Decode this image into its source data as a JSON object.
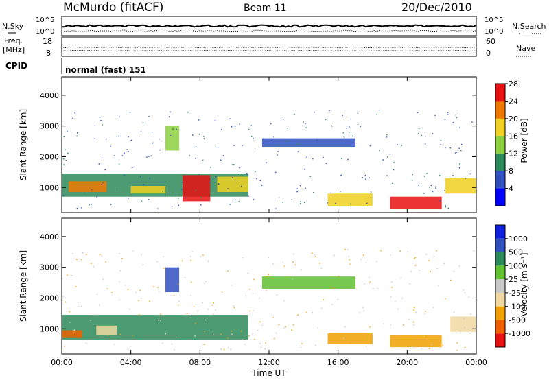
{
  "header": {
    "station": "McMurdo (fitACF)",
    "beam": "Beam 11",
    "date": "20/Dec/2010"
  },
  "noise_panel": {
    "left_label": "N.Sky",
    "right_label": "N.Search",
    "left_ticks": [
      "10^5",
      "10^0"
    ],
    "right_ticks": [
      "10^5",
      "10^0"
    ]
  },
  "freq_panel": {
    "left_label_top": "Freq.",
    "left_label_bottom": "[MHz]",
    "right_label": "Nave",
    "left_ticks": [
      "18",
      "8"
    ],
    "right_ticks": [
      "60",
      "0"
    ]
  },
  "cpid": {
    "label": "CPID",
    "value": "normal (fast) 151"
  },
  "chart_data": [
    {
      "type": "heatmap",
      "name": "power",
      "ylabel": "Slant Range [km]",
      "yticks": [
        "1000",
        "2000",
        "3000",
        "4000"
      ],
      "ylim": [
        180,
        4600
      ],
      "xlim": [
        0,
        24
      ],
      "colorbar_label": "Power [dB]",
      "colorbar_ticks": [
        "4",
        "8",
        "12",
        "16",
        "20",
        "24",
        "28"
      ],
      "colorbar_colors": [
        "#0000ff",
        "#3050c0",
        "#2d8a5a",
        "#8cd040",
        "#f0d020",
        "#f07800",
        "#e81010"
      ],
      "regions": [
        {
          "t0": 0.0,
          "t1": 10.8,
          "r0": 700,
          "r1": 1450,
          "level": 12
        },
        {
          "t0": 0.4,
          "t1": 2.6,
          "r0": 850,
          "r1": 1200,
          "level": 24
        },
        {
          "t0": 4.0,
          "t1": 6.0,
          "r0": 800,
          "r1": 1050,
          "level": 20
        },
        {
          "t0": 7.0,
          "t1": 8.6,
          "r0": 550,
          "r1": 1400,
          "level": 28
        },
        {
          "t0": 9.0,
          "t1": 10.8,
          "r0": 850,
          "r1": 1350,
          "level": 20
        },
        {
          "t0": 6.0,
          "t1": 6.8,
          "r0": 2200,
          "r1": 3000,
          "level": 16
        },
        {
          "t0": 11.6,
          "t1": 17.0,
          "r0": 2300,
          "r1": 2600,
          "level": 8
        },
        {
          "t0": 15.4,
          "t1": 18.0,
          "r0": 400,
          "r1": 800,
          "level": 20
        },
        {
          "t0": 19.0,
          "t1": 22.0,
          "r0": 300,
          "r1": 700,
          "level": 28
        },
        {
          "t0": 22.2,
          "t1": 24.0,
          "r0": 800,
          "r1": 1300,
          "level": 20
        }
      ]
    },
    {
      "type": "heatmap",
      "name": "velocity",
      "xlabel": "Time UT",
      "xticks": [
        "00:00",
        "04:00",
        "08:00",
        "12:00",
        "16:00",
        "20:00",
        "00:00"
      ],
      "ylabel": "Slant Range [km]",
      "yticks": [
        "1000",
        "2000",
        "3000",
        "4000"
      ],
      "ylim": [
        180,
        4600
      ],
      "xlim": [
        0,
        24
      ],
      "colorbar_label": "Velocity [m s⁻¹]",
      "colorbar_ticks": [
        "-1000",
        "-500",
        "-100",
        "-25",
        "25",
        "100",
        "500",
        "1000"
      ],
      "colorbar_colors": [
        "#e81010",
        "#f06000",
        "#f0a000",
        "#f0d8a0",
        "#c8c8c8",
        "#60c030",
        "#2d8a5a",
        "#3050c0",
        "#1020e0"
      ],
      "regions": [
        {
          "t0": 0.0,
          "t1": 10.8,
          "r0": 650,
          "r1": 1450,
          "level": 100
        },
        {
          "t0": 0.0,
          "t1": 1.2,
          "r0": 700,
          "r1": 950,
          "level": -1000
        },
        {
          "t0": 2.0,
          "t1": 3.2,
          "r0": 800,
          "r1": 1100,
          "level": -100
        },
        {
          "t0": 6.0,
          "t1": 6.8,
          "r0": 2200,
          "r1": 3000,
          "level": 500
        },
        {
          "t0": 11.6,
          "t1": 17.0,
          "r0": 2300,
          "r1": 2700,
          "level": 25
        },
        {
          "t0": 15.4,
          "t1": 18.0,
          "r0": 500,
          "r1": 850,
          "level": -500
        },
        {
          "t0": 19.0,
          "t1": 22.0,
          "r0": 400,
          "r1": 800,
          "level": -500
        },
        {
          "t0": 22.5,
          "t1": 24.0,
          "r0": 900,
          "r1": 1400,
          "level": -100
        }
      ]
    }
  ]
}
